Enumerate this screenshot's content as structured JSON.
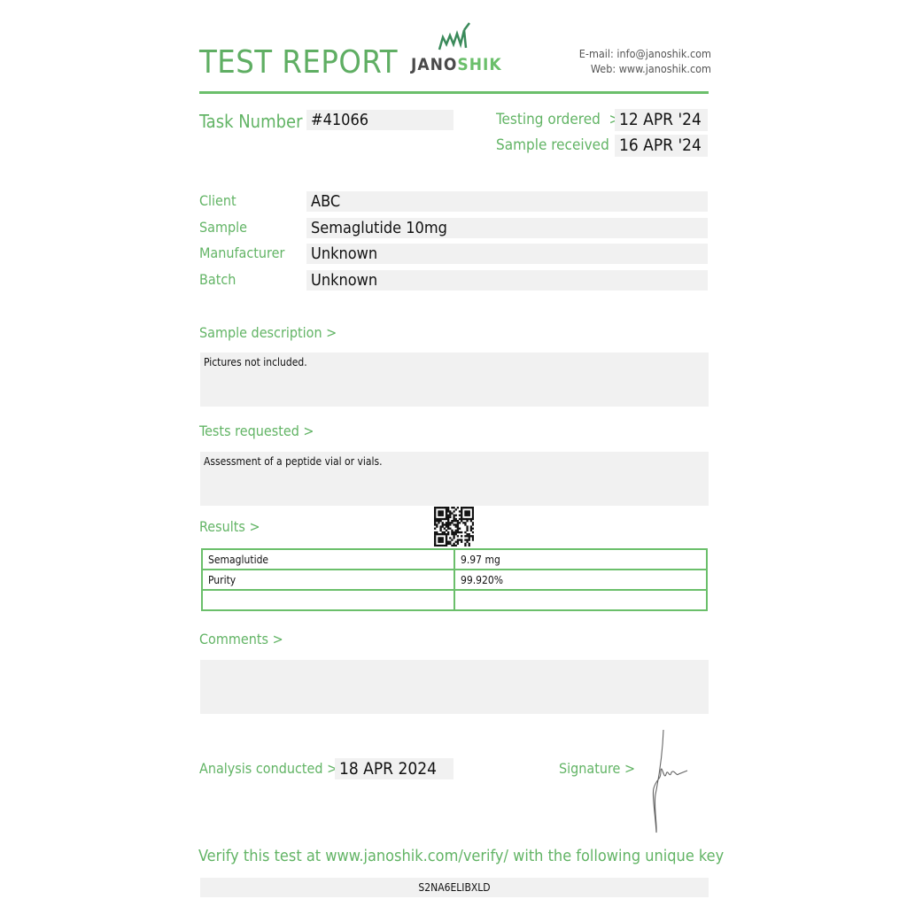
{
  "header": {
    "title": "TEST REPORT",
    "logo_text": "JANOSHIK",
    "email": "E-mail: info@janoshik.com",
    "web": "Web: www.janoshik.com",
    "accent": "#62b465"
  },
  "task": {
    "label": "Task Number",
    "value": "#41066"
  },
  "dates": {
    "ordered_label": "Testing ordered  >",
    "ordered_value": "12 APR '24",
    "received_label": "Sample received >",
    "received_value": "16 APR '24"
  },
  "fields": [
    {
      "label": "Client",
      "value": "ABC"
    },
    {
      "label": "Sample",
      "value": "Semaglutide 10mg"
    },
    {
      "label": "Manufacturer",
      "value": "Unknown"
    },
    {
      "label": "Batch",
      "value": "Unknown"
    }
  ],
  "sample_description": {
    "label": "Sample description >",
    "text": "Pictures not included."
  },
  "tests_requested": {
    "label": "Tests requested >",
    "text": "Assessment of a peptide vial or vials."
  },
  "results": {
    "label": "Results >",
    "rows": [
      [
        "Semaglutide",
        "9.97 mg"
      ],
      [
        "Purity",
        "99.920%"
      ],
      [
        "",
        ""
      ]
    ]
  },
  "comments": {
    "label": "Comments >",
    "text": ""
  },
  "analysis": {
    "label": "Analysis conducted >",
    "value": "18 APR 2024"
  },
  "signature": {
    "label": "Signature >"
  },
  "verify": {
    "text": "Verify this test at www.janoshik.com/verify/ with the following unique key",
    "key": "S2NA6ELIBXLD"
  }
}
